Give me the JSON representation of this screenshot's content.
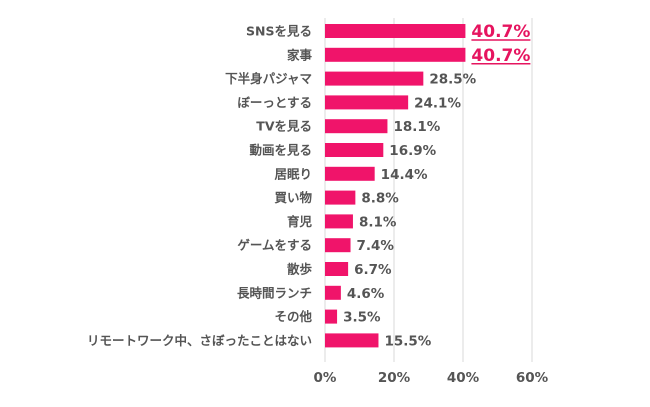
{
  "chart_data": {
    "type": "bar",
    "orientation": "horizontal",
    "categories": [
      "SNSを見る",
      "家事",
      "下半身パジャマ",
      "ぼーっとする",
      "TVを見る",
      "動画を見る",
      "居眠り",
      "買い物",
      "育児",
      "ゲームをする",
      "散歩",
      "長時間ランチ",
      "その他",
      "リモートワーク中、さぼったことはない"
    ],
    "values": [
      40.7,
      40.7,
      28.5,
      24.1,
      18.1,
      16.9,
      14.4,
      8.8,
      8.1,
      7.4,
      6.7,
      4.6,
      3.5,
      15.5
    ],
    "value_labels": [
      "40.7%",
      "40.7%",
      "28.5%",
      "24.1%",
      "18.1%",
      "16.9%",
      "14.4%",
      "8.8%",
      "8.1%",
      "7.4%",
      "6.7%",
      "4.6%",
      "3.5%",
      "15.5%"
    ],
    "highlighted": [
      true,
      true,
      false,
      false,
      false,
      false,
      false,
      false,
      false,
      false,
      false,
      false,
      false,
      false
    ],
    "xlim": [
      0,
      60
    ],
    "xticks": [
      0,
      20,
      40,
      60
    ],
    "xtick_labels": [
      "0%",
      "20%",
      "40%",
      "60%"
    ],
    "grid": true,
    "bar_color": "#f0146a",
    "highlight_label_color": "#e6145f",
    "title": "",
    "xlabel": "",
    "ylabel": ""
  }
}
